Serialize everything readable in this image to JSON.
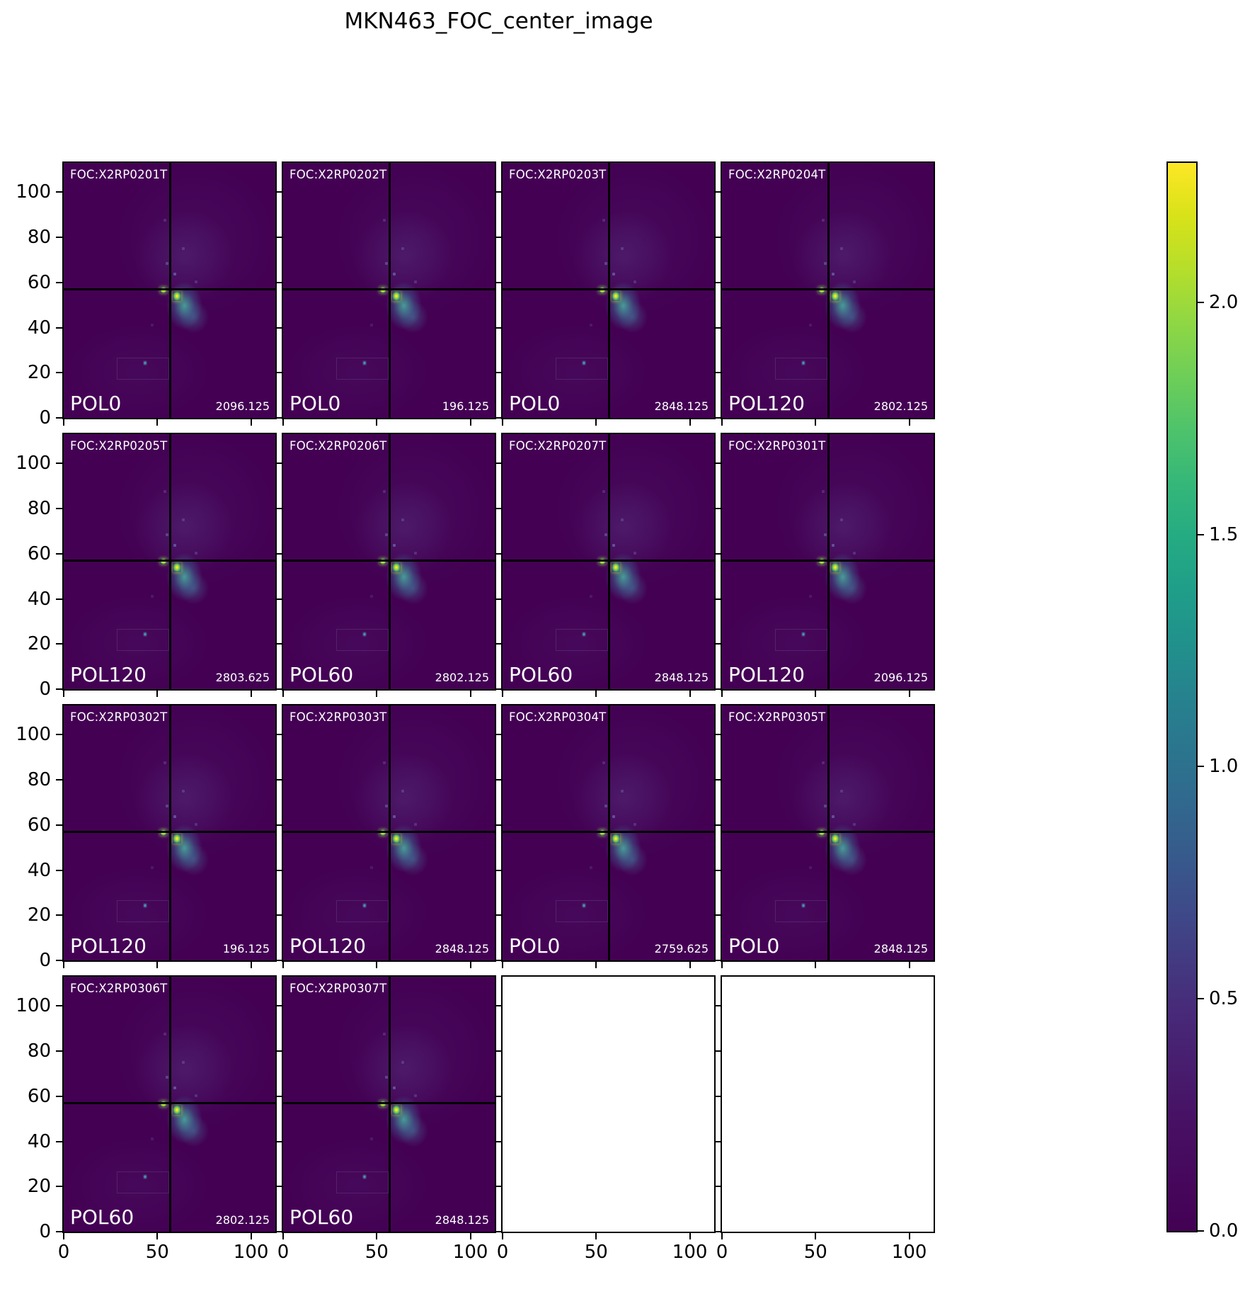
{
  "title": "MKN463_FOC_center_image",
  "colors": {
    "figure_background": "#ffffff",
    "panel_background": "#440154",
    "bright_core": "#fde725",
    "blob_teal": "#35b779",
    "crosshair": "#000000",
    "panel_text": "#ffffff",
    "axis_text": "#000000"
  },
  "chart_data": {
    "type": "heatmap",
    "title": "MKN463_FOC_center_image",
    "colormap": "viridis",
    "grid": {
      "rows": 4,
      "cols": 4,
      "filled_panels": 14,
      "empty_panels": 2
    },
    "axis_range": [
      0,
      113
    ],
    "x_ticks": [
      0,
      50,
      100
    ],
    "y_ticks": [
      0,
      20,
      40,
      60,
      80,
      100
    ],
    "crosshair": {
      "x": 57,
      "y": 57
    },
    "colorbar": {
      "ticks": [
        "2.0",
        "1.5",
        "1.0",
        "0.5",
        "0.0"
      ],
      "vmin": 0.0,
      "vmax": 2.3,
      "position": "right"
    },
    "panels": [
      {
        "foc": "FOC:X2RP0201T",
        "pol": "POL0",
        "value": "2096.125",
        "empty": false
      },
      {
        "foc": "FOC:X2RP0202T",
        "pol": "POL0",
        "value": "196.125",
        "empty": false
      },
      {
        "foc": "FOC:X2RP0203T",
        "pol": "POL0",
        "value": "2848.125",
        "empty": false
      },
      {
        "foc": "FOC:X2RP0204T",
        "pol": "POL120",
        "value": "2802.125",
        "empty": false
      },
      {
        "foc": "FOC:X2RP0205T",
        "pol": "POL120",
        "value": "2803.625",
        "empty": false
      },
      {
        "foc": "FOC:X2RP0206T",
        "pol": "POL60",
        "value": "2802.125",
        "empty": false
      },
      {
        "foc": "FOC:X2RP0207T",
        "pol": "POL60",
        "value": "2848.125",
        "empty": false
      },
      {
        "foc": "FOC:X2RP0301T",
        "pol": "POL120",
        "value": "2096.125",
        "empty": false
      },
      {
        "foc": "FOC:X2RP0302T",
        "pol": "POL120",
        "value": "196.125",
        "empty": false
      },
      {
        "foc": "FOC:X2RP0303T",
        "pol": "POL120",
        "value": "2848.125",
        "empty": false
      },
      {
        "foc": "FOC:X2RP0304T",
        "pol": "POL0",
        "value": "2759.625",
        "empty": false
      },
      {
        "foc": "FOC:X2RP0305T",
        "pol": "POL0",
        "value": "2848.125",
        "empty": false
      },
      {
        "foc": "FOC:X2RP0306T",
        "pol": "POL60",
        "value": "2802.125",
        "empty": false
      },
      {
        "foc": "FOC:X2RP0307T",
        "pol": "POL60",
        "value": "2848.125",
        "empty": false
      },
      {
        "empty": true
      },
      {
        "empty": true
      }
    ]
  }
}
